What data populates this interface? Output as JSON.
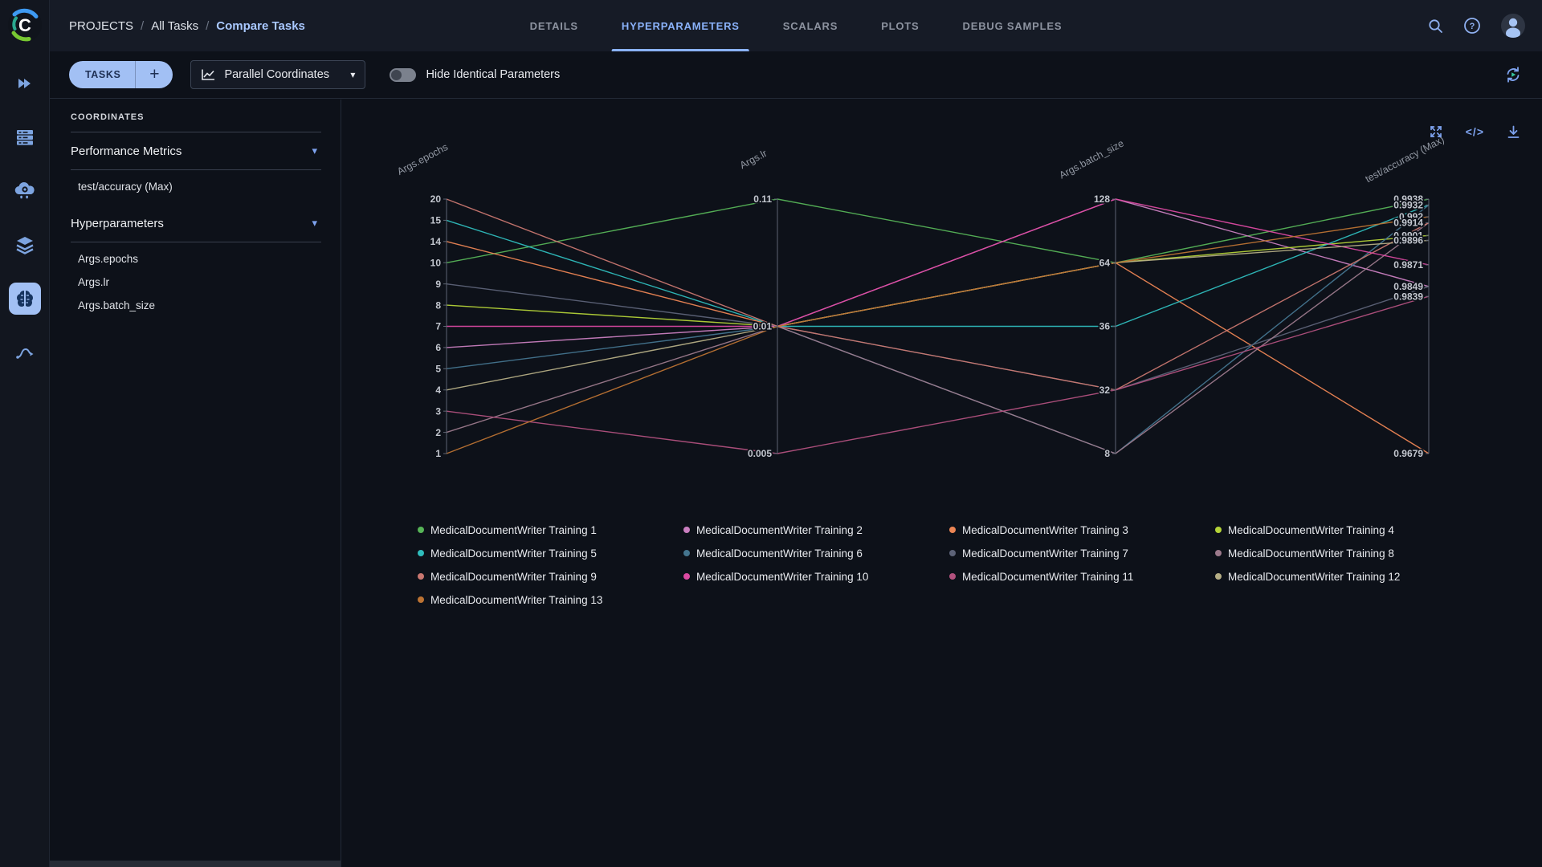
{
  "header": {
    "breadcrumb": [
      "PROJECTS",
      "All Tasks",
      "Compare Tasks"
    ],
    "breadcrumb_separator": "/",
    "tabs": [
      {
        "label": "DETAILS",
        "active": false
      },
      {
        "label": "HYPERPARAMETERS",
        "active": true
      },
      {
        "label": "SCALARS",
        "active": false
      },
      {
        "label": "PLOTS",
        "active": false
      },
      {
        "label": "DEBUG SAMPLES",
        "active": false
      }
    ]
  },
  "icons": {
    "caret_down": "▾",
    "plus": "+",
    "help": "?",
    "code": "</>"
  },
  "sidebar": {
    "items": [
      {
        "icon": "double-play-icon",
        "active": false
      },
      {
        "icon": "server-queue-icon",
        "active": false
      },
      {
        "icon": "cloud-workers-icon",
        "active": false
      },
      {
        "icon": "layers-icon",
        "active": false
      },
      {
        "icon": "brain-icon",
        "active": true
      },
      {
        "icon": "pipeline-icon",
        "active": false
      }
    ]
  },
  "toolbar": {
    "tasks_label": "TASKS",
    "view_selector": "Parallel Coordinates",
    "toggle_label": "Hide Identical Parameters",
    "toggle_on": false
  },
  "coordinates_panel": {
    "title": "COORDINATES",
    "sections": [
      {
        "label": "Performance Metrics",
        "items": [
          "test/accuracy (Max)"
        ]
      },
      {
        "label": "Hyperparameters",
        "items": [
          "Args.epochs",
          "Args.lr",
          "Args.batch_size"
        ]
      }
    ]
  },
  "chart_data": {
    "type": "parallel-coordinates",
    "axes": [
      {
        "title": "Args.epochs",
        "type": "categorical",
        "categories": [
          "20",
          "15",
          "14",
          "10",
          "9",
          "8",
          "7",
          "6",
          "5",
          "4",
          "3",
          "2",
          "1"
        ]
      },
      {
        "title": "Args.lr",
        "type": "categorical",
        "categories": [
          "0.11",
          "0.01",
          "0.005"
        ]
      },
      {
        "title": "Args.batch_size",
        "type": "categorical",
        "categories": [
          "128",
          "64",
          "36",
          "32",
          "8"
        ]
      },
      {
        "title": "test/accuracy (Max)",
        "type": "linear",
        "range": [
          0.9938,
          0.9679
        ],
        "tick_labels": [
          "0.9938",
          "0.9932",
          "0.992",
          "0.9914",
          "0.9901",
          "0.9896",
          "0.9871",
          "0.9849",
          "0.9839",
          "0.9679"
        ]
      }
    ],
    "series": [
      {
        "name": "MedicalDocumentWriter Training 1",
        "color": "#56b457",
        "values": [
          "10",
          "0.11",
          "64",
          0.9938
        ]
      },
      {
        "name": "MedicalDocumentWriter Training 2",
        "color": "#ca7fc0",
        "values": [
          "6",
          "0.01",
          "128",
          0.9849
        ]
      },
      {
        "name": "MedicalDocumentWriter Training 3",
        "color": "#ec8554",
        "values": [
          "14",
          "0.01",
          "64",
          0.9679
        ]
      },
      {
        "name": "MedicalDocumentWriter Training 4",
        "color": "#b4d338",
        "values": [
          "8",
          "0.01",
          "64",
          0.9901
        ]
      },
      {
        "name": "MedicalDocumentWriter Training 5",
        "color": "#2fbdbd",
        "values": [
          "15",
          "0.01",
          "36",
          0.9932
        ]
      },
      {
        "name": "MedicalDocumentWriter Training 6",
        "color": "#44758f",
        "values": [
          "5",
          "0.01",
          "8",
          0.9932
        ]
      },
      {
        "name": "MedicalDocumentWriter Training 7",
        "color": "#5d6378",
        "values": [
          "9",
          "0.01",
          "32",
          0.9849
        ]
      },
      {
        "name": "MedicalDocumentWriter Training 8",
        "color": "#9c7a8c",
        "values": [
          "2",
          "0.01",
          "8",
          0.9914
        ]
      },
      {
        "name": "MedicalDocumentWriter Training 9",
        "color": "#c97770",
        "values": [
          "20",
          "0.01",
          "32",
          0.9914
        ]
      },
      {
        "name": "MedicalDocumentWriter Training 10",
        "color": "#dc4aa2",
        "values": [
          "7",
          "0.01",
          "128",
          0.9871
        ]
      },
      {
        "name": "MedicalDocumentWriter Training 11",
        "color": "#b2517e",
        "values": [
          "3",
          "0.005",
          "32",
          0.9839
        ]
      },
      {
        "name": "MedicalDocumentWriter Training 12",
        "color": "#b5ae85",
        "values": [
          "4",
          "0.01",
          "64",
          0.9896
        ]
      },
      {
        "name": "MedicalDocumentWriter Training 13",
        "color": "#bc7333",
        "values": [
          "1",
          "0.01",
          "64",
          0.992
        ]
      }
    ]
  }
}
